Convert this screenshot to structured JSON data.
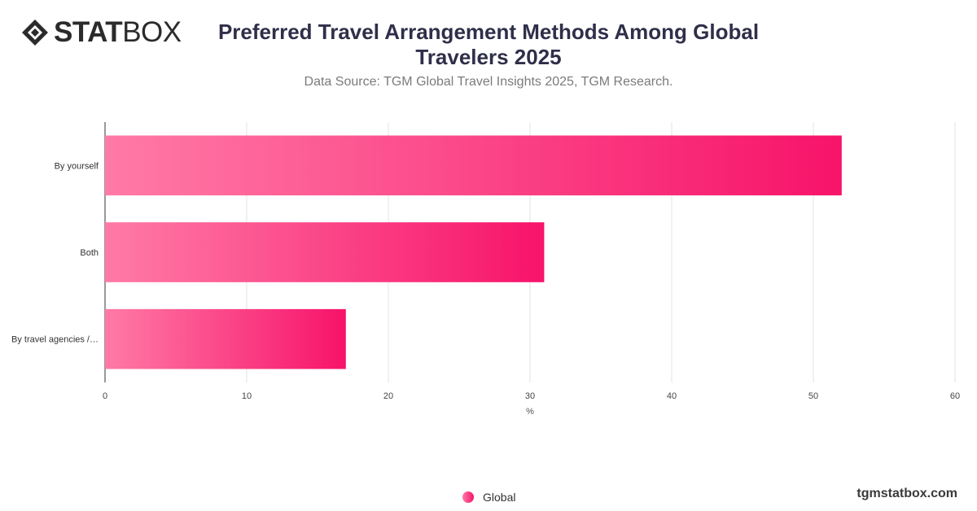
{
  "logo": {
    "bold": "STAT",
    "light": "BOX",
    "icon": "statbox-diamond-icon"
  },
  "title": "Preferred Travel Arrangement Methods Among Global Travelers 2025",
  "subtitle": "Data Source: TGM Global Travel Insights 2025, TGM Research.",
  "brand": "tgmstatbox.com",
  "colors": {
    "bar_start": "#ff7aa6",
    "bar_end": "#f7136a",
    "grid": "#e3e3e3",
    "axis": "#333333"
  },
  "chart_data": {
    "type": "bar",
    "orientation": "horizontal",
    "categories": [
      "By yourself",
      "Both",
      "By travel agencies /…"
    ],
    "series": [
      {
        "name": "Global",
        "values": [
          52,
          31,
          17
        ]
      }
    ],
    "xlabel": "%",
    "xlim": [
      0,
      60
    ],
    "xticks": [
      0,
      10,
      20,
      30,
      40,
      50,
      60
    ],
    "grid": true,
    "legend": "bottom-center"
  }
}
